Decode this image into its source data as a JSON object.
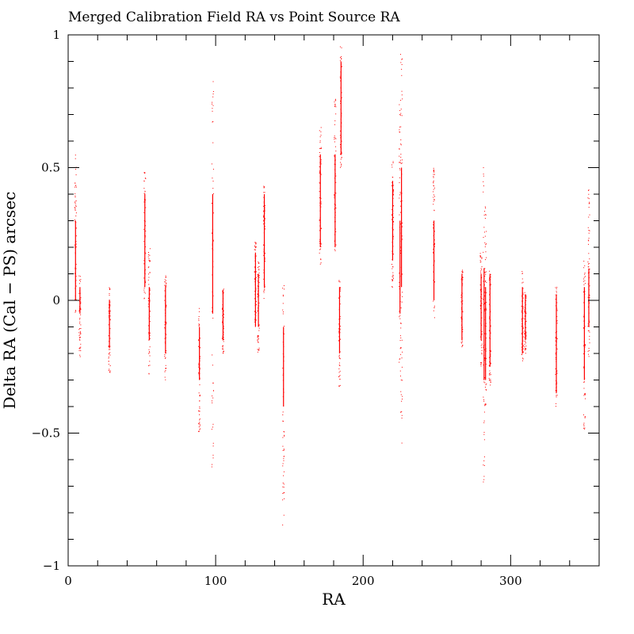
{
  "chart_data": {
    "type": "scatter",
    "title": "Merged Calibration Field RA vs Point Source RA",
    "xlabel": "RA",
    "ylabel": "Delta RA (Cal − PS) arcsec",
    "xlim": [
      0,
      360
    ],
    "ylim": [
      -1,
      1
    ],
    "x_ticks": [
      0,
      100,
      200,
      300
    ],
    "y_ticks": [
      -1,
      -0.5,
      0,
      0.5,
      1
    ],
    "x_tick_labels": [
      "0",
      "100",
      "200",
      "300"
    ],
    "y_tick_labels": [
      "−1",
      "−0.5",
      "0",
      "0.5",
      "1"
    ],
    "x_minor_step": 20,
    "y_minor_step": 0.1,
    "grid": false,
    "legend": "none",
    "point_color": "#ff0000",
    "clusters": [
      {
        "x": 5,
        "y_min": -0.05,
        "y_max": 0.55,
        "dense_min": 0.0,
        "dense_max": 0.3
      },
      {
        "x": 8,
        "y_min": -0.22,
        "y_max": 0.1,
        "dense_min": -0.05,
        "dense_max": 0.05
      },
      {
        "x": 28,
        "y_min": -0.28,
        "y_max": 0.05,
        "dense_min": -0.18,
        "dense_max": 0.0
      },
      {
        "x": 52,
        "y_min": 0.0,
        "y_max": 0.5,
        "dense_min": 0.05,
        "dense_max": 0.4
      },
      {
        "x": 55,
        "y_min": -0.28,
        "y_max": 0.2,
        "dense_min": -0.15,
        "dense_max": 0.05
      },
      {
        "x": 66,
        "y_min": -0.3,
        "y_max": 0.1,
        "dense_min": -0.2,
        "dense_max": 0.05
      },
      {
        "x": 89,
        "y_min": -0.5,
        "y_max": -0.02,
        "dense_min": -0.3,
        "dense_max": -0.1
      },
      {
        "x": 98,
        "y_min": -0.65,
        "y_max": 0.83,
        "dense_min": -0.05,
        "dense_max": 0.4
      },
      {
        "x": 105,
        "y_min": -0.2,
        "y_max": 0.05,
        "dense_min": -0.15,
        "dense_max": 0.04
      },
      {
        "x": 127,
        "y_min": -0.1,
        "y_max": 0.23,
        "dense_min": -0.1,
        "dense_max": 0.18
      },
      {
        "x": 129,
        "y_min": -0.2,
        "y_max": 0.15,
        "dense_min": -0.1,
        "dense_max": 0.1
      },
      {
        "x": 133,
        "y_min": 0.0,
        "y_max": 0.43,
        "dense_min": 0.05,
        "dense_max": 0.4
      },
      {
        "x": 146,
        "y_min": -0.85,
        "y_max": 0.06,
        "dense_min": -0.4,
        "dense_max": -0.1
      },
      {
        "x": 171,
        "y_min": 0.12,
        "y_max": 0.67,
        "dense_min": 0.2,
        "dense_max": 0.55
      },
      {
        "x": 181,
        "y_min": 0.18,
        "y_max": 0.77,
        "dense_min": 0.2,
        "dense_max": 0.55
      },
      {
        "x": 184,
        "y_min": -0.33,
        "y_max": 0.08,
        "dense_min": -0.2,
        "dense_max": 0.05
      },
      {
        "x": 185,
        "y_min": 0.5,
        "y_max": 0.96,
        "dense_min": 0.55,
        "dense_max": 0.9
      },
      {
        "x": 220,
        "y_min": 0.05,
        "y_max": 0.53,
        "dense_min": 0.15,
        "dense_max": 0.45
      },
      {
        "x": 225,
        "y_min": -0.3,
        "y_max": 0.75,
        "dense_min": -0.05,
        "dense_max": 0.3
      },
      {
        "x": 226,
        "y_min": -0.55,
        "y_max": 0.96,
        "dense_min": 0.05,
        "dense_max": 0.5
      },
      {
        "x": 248,
        "y_min": -0.08,
        "y_max": 0.5,
        "dense_min": 0.0,
        "dense_max": 0.3
      },
      {
        "x": 267,
        "y_min": -0.18,
        "y_max": 0.12,
        "dense_min": -0.15,
        "dense_max": 0.1
      },
      {
        "x": 280,
        "y_min": -0.25,
        "y_max": 0.18,
        "dense_min": -0.15,
        "dense_max": 0.1
      },
      {
        "x": 282,
        "y_min": -0.7,
        "y_max": 0.5,
        "dense_min": -0.3,
        "dense_max": 0.12
      },
      {
        "x": 283,
        "y_min": -0.47,
        "y_max": 0.37,
        "dense_min": -0.3,
        "dense_max": 0.05
      },
      {
        "x": 286,
        "y_min": -0.32,
        "y_max": 0.12,
        "dense_min": -0.25,
        "dense_max": 0.1
      },
      {
        "x": 308,
        "y_min": -0.24,
        "y_max": 0.12,
        "dense_min": -0.2,
        "dense_max": 0.05
      },
      {
        "x": 310,
        "y_min": -0.2,
        "y_max": 0.03,
        "dense_min": -0.15,
        "dense_max": 0.02
      },
      {
        "x": 331,
        "y_min": -0.4,
        "y_max": 0.05,
        "dense_min": -0.35,
        "dense_max": 0.02
      },
      {
        "x": 350,
        "y_min": -0.52,
        "y_max": 0.15,
        "dense_min": -0.3,
        "dense_max": 0.05
      },
      {
        "x": 353,
        "y_min": -0.22,
        "y_max": 0.43,
        "dense_min": -0.1,
        "dense_max": 0.12
      }
    ]
  }
}
